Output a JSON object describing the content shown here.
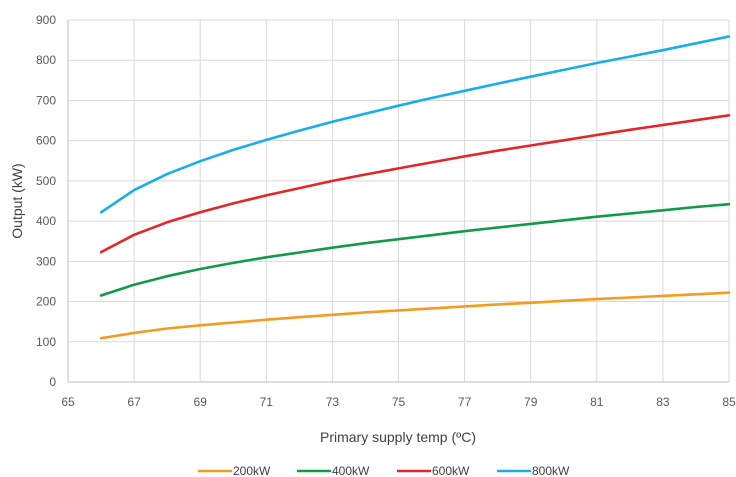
{
  "chart_data": {
    "type": "line",
    "title": "",
    "xlabel": "Primary supply temp (ºC)",
    "ylabel": "Output (kW)",
    "xlim": [
      65,
      85
    ],
    "ylim": [
      0,
      900
    ],
    "x_ticks": [
      "65",
      "67",
      "69",
      "71",
      "73",
      "75",
      "77",
      "79",
      "81",
      "83",
      "85"
    ],
    "y_ticks": [
      "0",
      "100",
      "200",
      "300",
      "400",
      "500",
      "600",
      "700",
      "800",
      "900"
    ],
    "grid": "vertical and horizontal gridlines",
    "legend_position": "bottom",
    "x": [
      66,
      67,
      68,
      69,
      70,
      71,
      72,
      73,
      74,
      75,
      76,
      77,
      78,
      79,
      80,
      81,
      82,
      83,
      84,
      85
    ],
    "series": [
      {
        "name": "200kW",
        "color": "#F39C1F",
        "values": [
          109,
          122,
          133,
          141,
          148,
          155,
          161,
          167,
          173,
          178,
          183,
          188,
          193,
          197,
          202,
          206,
          210,
          214,
          218,
          222
        ]
      },
      {
        "name": "400kW",
        "color": "#129A48",
        "values": [
          215,
          242,
          263,
          281,
          296,
          310,
          322,
          334,
          345,
          355,
          365,
          375,
          384,
          393,
          402,
          411,
          419,
          427,
          435,
          442
        ]
      },
      {
        "name": "600kW",
        "color": "#E3262A",
        "values": [
          323,
          366,
          397,
          422,
          444,
          464,
          482,
          500,
          516,
          531,
          546,
          561,
          575,
          588,
          601,
          614,
          627,
          639,
          651,
          663
        ]
      },
      {
        "name": "800kW",
        "color": "#1AAEE6",
        "values": [
          422,
          477,
          517,
          549,
          577,
          602,
          625,
          647,
          667,
          687,
          706,
          724,
          742,
          759,
          776,
          793,
          809,
          825,
          842,
          859
        ]
      }
    ]
  }
}
